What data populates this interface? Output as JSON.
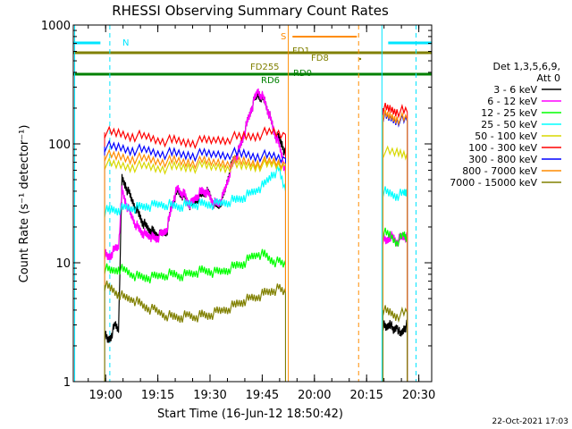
{
  "chart_data": {
    "type": "line",
    "title": "RHESSI Observing Summary Count Rates",
    "xlabel": "Start Time (16-Jun-12 18:50:42)",
    "ylabel": "Count Rate (s⁻¹ detector⁻¹)",
    "y_scale": "log",
    "ylim": [
      1,
      1000
    ],
    "xlim_minutes_since_18_50_42": [
      0,
      103
    ],
    "x_ticks": [
      {
        "label": "19:00",
        "min": 9.3
      },
      {
        "label": "19:15",
        "min": 24.3
      },
      {
        "label": "19:30",
        "min": 39.3
      },
      {
        "label": "19:45",
        "min": 54.3
      },
      {
        "label": "20:00",
        "min": 69.3
      },
      {
        "label": "20:15",
        "min": 84.3
      },
      {
        "label": "20:30",
        "min": 99.3
      }
    ],
    "y_ticks": [
      {
        "label": "1",
        "value": 1
      },
      {
        "label": "10",
        "value": 10
      },
      {
        "label": "100",
        "value": 100
      },
      {
        "label": "1000",
        "value": 1000
      }
    ],
    "legend_title_lines": [
      "Det 1,3,5,6,9,",
      "Att 0"
    ],
    "legend_position": "right",
    "flag_labels": [
      {
        "text": "N",
        "color": "#00e5ff"
      },
      {
        "text": "S",
        "color": "#ff8c00"
      },
      {
        "text": "FD1",
        "color": "#808000"
      },
      {
        "text": "FD8",
        "color": "#808000"
      },
      {
        "text": "FD255",
        "color": "#808000"
      },
      {
        "text": "RD0",
        "color": "#008000"
      },
      {
        "text": "RD6",
        "color": "#008000"
      }
    ],
    "series": [
      {
        "name": "3 - 6 keV",
        "color": "#000000",
        "segments": [
          {
            "x": [
              9,
              10,
              11,
              12,
              13,
              14,
              15,
              16,
              17,
              18,
              19,
              20,
              21,
              22,
              23,
              24,
              25,
              26,
              27,
              28,
              29,
              30,
              31,
              32,
              33,
              34,
              35,
              36,
              37,
              38,
              39,
              40,
              41,
              42,
              43,
              44,
              45,
              46,
              47,
              48,
              49,
              50,
              51,
              52,
              53,
              54,
              55,
              56,
              57,
              58,
              59,
              60,
              61
            ],
            "y": [
              2.5,
              2.2,
              2.5,
              3,
              2.8,
              50,
              45,
              38,
              33,
              29,
              25,
              22,
              20,
              19,
              18,
              17,
              17,
              18,
              19,
              28,
              35,
              40,
              38,
              36,
              32,
              30,
              33,
              36,
              38,
              40,
              38,
              33,
              30,
              31,
              35,
              45,
              60,
              72,
              80,
              95,
              120,
              150,
              190,
              230,
              260,
              250,
              230,
              190,
              150,
              120,
              110,
              100,
              80
            ]
          },
          {
            "x": [
              89,
              90,
              91,
              92,
              93,
              94,
              95,
              96
            ],
            "y": [
              3,
              2.8,
              3.2,
              2.6,
              3,
              2.4,
              2.8,
              3
            ]
          }
        ]
      },
      {
        "name": "6 - 12 keV",
        "color": "#ff00ff",
        "segments": [
          {
            "x": [
              9,
              10,
              11,
              12,
              13,
              14,
              15,
              16,
              17,
              18,
              19,
              20,
              21,
              22,
              23,
              24,
              25,
              26,
              27,
              28,
              29,
              30,
              31,
              32,
              33,
              34,
              35,
              36,
              37,
              38,
              39,
              40,
              41,
              42,
              43,
              44,
              45,
              46,
              47,
              48,
              49,
              50,
              51,
              52,
              53,
              54,
              55,
              56,
              57,
              58,
              59,
              60,
              61
            ],
            "y": [
              12,
              11,
              12,
              13,
              14,
              40,
              33,
              27,
              24,
              21,
              19,
              18,
              17,
              17,
              16,
              16,
              17,
              18,
              20,
              27,
              36,
              42,
              39,
              37,
              32,
              31,
              35,
              38,
              40,
              40,
              37,
              33,
              31,
              32,
              36,
              45,
              58,
              70,
              80,
              95,
              120,
              150,
              190,
              230,
              280,
              260,
              230,
              190,
              150,
              120,
              100,
              80,
              55
            ]
          },
          {
            "x": [
              89,
              90,
              91,
              92,
              93,
              94,
              95,
              96
            ],
            "y": [
              16,
              15,
              17,
              16,
              15,
              16,
              17,
              16
            ]
          }
        ]
      },
      {
        "name": "12 - 25 keV",
        "color": "#00ff00",
        "segments": [
          {
            "x": [
              9,
              11,
              13,
              15,
              17,
              19,
              21,
              23,
              25,
              27,
              29,
              31,
              33,
              35,
              37,
              39,
              41,
              43,
              45,
              47,
              49,
              51,
              53,
              55,
              57,
              59,
              61
            ],
            "y": [
              9,
              8.5,
              9,
              8.5,
              8,
              7.5,
              7.5,
              7.5,
              7.8,
              8,
              8,
              7.8,
              8,
              8.3,
              8.5,
              8.5,
              8.2,
              8.5,
              9,
              9.5,
              10,
              11,
              12,
              11.5,
              10.5,
              10,
              9.5
            ]
          },
          {
            "x": [
              89,
              91,
              93,
              95,
              96
            ],
            "y": [
              18,
              17,
              15,
              17,
              16
            ]
          }
        ]
      },
      {
        "name": "25 - 50 keV",
        "color": "#00ffff",
        "segments": [
          {
            "x": [
              9,
              11,
              13,
              15,
              17,
              19,
              21,
              23,
              25,
              27,
              29,
              31,
              33,
              35,
              37,
              39,
              41,
              43,
              45,
              47,
              49,
              51,
              53,
              55,
              57,
              59,
              61
            ],
            "y": [
              27,
              28,
              28,
              29,
              29,
              29,
              30,
              30,
              31,
              31,
              30,
              30,
              31,
              31,
              31,
              31,
              31,
              32,
              33,
              34,
              36,
              38,
              42,
              45,
              55,
              60,
              40
            ]
          },
          {
            "x": [
              89,
              91,
              93,
              95,
              96
            ],
            "y": [
              40,
              38,
              37,
              38,
              40
            ]
          }
        ]
      },
      {
        "name": "50 - 100 keV",
        "color": "#d8d800",
        "segments": [
          {
            "x": [
              9,
              13,
              17,
              21,
              25,
              29,
              33,
              37,
              41,
              45,
              49,
              53,
              57,
              61
            ],
            "y": [
              68,
              66,
              65,
              64,
              63,
              63,
              64,
              64,
              64,
              65,
              65,
              66,
              66,
              65
            ]
          },
          {
            "x": [
              89,
              93,
              96
            ],
            "y": [
              85,
              84,
              84
            ]
          }
        ]
      },
      {
        "name": "100 - 300 keV",
        "color": "#ff0000",
        "segments": [
          {
            "x": [
              9,
              13,
              17,
              21,
              25,
              29,
              33,
              37,
              41,
              45,
              49,
              53,
              57,
              61
            ],
            "y": [
              125,
              122,
              118,
              113,
              108,
              105,
              103,
              104,
              108,
              112,
              115,
              120,
              125,
              120
            ]
          },
          {
            "x": [
              89,
              91,
              93,
              96
            ],
            "y": [
              200,
              195,
              190,
              185
            ]
          }
        ]
      },
      {
        "name": "300 - 800 keV",
        "color": "#0000ff",
        "segments": [
          {
            "x": [
              9,
              13,
              17,
              21,
              25,
              29,
              33,
              37,
              41,
              45,
              49,
              53,
              57,
              61
            ],
            "y": [
              95,
              93,
              90,
              87,
              84,
              82,
              81,
              81,
              82,
              83,
              82,
              80,
              78,
              75
            ]
          },
          {
            "x": [
              89,
              91,
              93,
              96
            ],
            "y": [
              170,
              165,
              160,
              155
            ]
          }
        ]
      },
      {
        "name": "800 - 7000 keV",
        "color": "#ff8c00",
        "segments": [
          {
            "x": [
              9,
              13,
              17,
              21,
              25,
              29,
              33,
              37,
              41,
              45,
              49,
              53,
              57,
              61
            ],
            "y": [
              80,
              78,
              76,
              74,
              72,
              71,
              70,
              70,
              70,
              71,
              71,
              70,
              70,
              68
            ]
          },
          {
            "x": [
              89,
              91,
              93,
              96
            ],
            "y": [
              175,
              170,
              165,
              160
            ]
          }
        ]
      },
      {
        "name": "7000 - 15000 keV",
        "color": "#808000",
        "segments": [
          {
            "x": [
              9,
              11,
              13,
              15,
              17,
              19,
              21,
              23,
              25,
              27,
              29,
              31,
              33,
              35,
              37,
              39,
              41,
              43,
              45,
              47,
              49,
              51,
              53,
              55,
              57,
              59,
              61
            ],
            "y": [
              6.5,
              6,
              5.5,
              5,
              5,
              4.5,
              4.2,
              4,
              3.8,
              3.6,
              3.5,
              3.5,
              3.6,
              3.5,
              3.6,
              3.6,
              3.8,
              4,
              4.2,
              4.5,
              4.8,
              5,
              5.2,
              5.5,
              5.8,
              6,
              5.5
            ]
          },
          {
            "x": [
              89,
              91,
              93,
              96
            ],
            "y": [
              4,
              3.8,
              3.6,
              3.8
            ]
          }
        ]
      }
    ]
  },
  "footer": {
    "timestamp": "22-Oct-2021 17:03"
  }
}
